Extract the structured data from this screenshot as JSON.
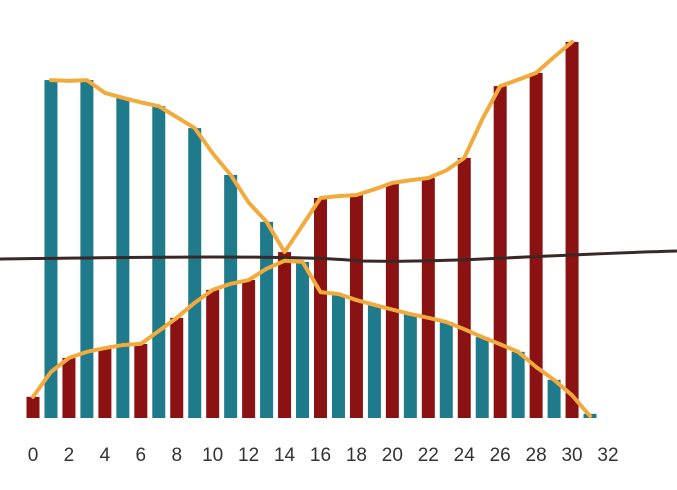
{
  "chart_data": {
    "type": "bar",
    "xlim": [
      0,
      32
    ],
    "xticks": [
      0,
      2,
      4,
      6,
      8,
      10,
      12,
      14,
      16,
      18,
      20,
      22,
      24,
      26,
      28,
      30,
      32
    ],
    "ylim": [
      0,
      100
    ],
    "series": [
      {
        "type": "bar",
        "color": "#8b1212",
        "x": [
          0,
          2,
          4,
          6,
          8,
          10,
          12,
          14,
          16,
          18,
          20,
          22,
          24,
          26,
          28,
          30
        ],
        "values": [
          5.6,
          15.9,
          18.5,
          19.6,
          26.5,
          33.9,
          36.5,
          43.9,
          58.2,
          59.0,
          62.2,
          63.5,
          68.8,
          87.8,
          91.3,
          99.5
        ]
      },
      {
        "type": "bar",
        "color": "#1f7a8c",
        "x": [
          1,
          3,
          5,
          7,
          9,
          11,
          13,
          15,
          17,
          19,
          21,
          23,
          25,
          27,
          29,
          31
        ],
        "values": [
          89.4,
          89.4,
          84.7,
          82.5,
          76.7,
          64.3,
          51.9,
          41.3,
          32.8,
          29.9,
          27.5,
          25.4,
          21.4,
          17.5,
          10.1,
          1.1
        ]
      },
      {
        "type": "line",
        "color": "#f2aa3c",
        "x": [
          1,
          2,
          3,
          4,
          5,
          6,
          7,
          8,
          9,
          10,
          11,
          12,
          13,
          14,
          15,
          16,
          17,
          18,
          19,
          20,
          21,
          22,
          23,
          24,
          25,
          26,
          27,
          28,
          29,
          30
        ],
        "values": [
          89.4,
          89.2,
          89.4,
          86,
          84.7,
          83.5,
          82.5,
          79.6,
          76.7,
          70,
          64.3,
          57,
          51.9,
          43.9,
          51,
          58.2,
          58.7,
          59,
          60.5,
          62.2,
          62.9,
          63.5,
          65.5,
          68.8,
          79,
          87.8,
          89.5,
          91.3,
          95.5,
          99.5
        ]
      },
      {
        "type": "line",
        "color": "#f2aa3c",
        "x": [
          0,
          1,
          2,
          3,
          4,
          5,
          6,
          7,
          8,
          9,
          10,
          11,
          12,
          13,
          14,
          15,
          16,
          17,
          18,
          19,
          20,
          21,
          22,
          23,
          24,
          25,
          26,
          27,
          28,
          29,
          30,
          31
        ],
        "values": [
          5.6,
          12.2,
          15.9,
          17.5,
          18.5,
          19.3,
          19.6,
          23,
          26.5,
          30.5,
          33.9,
          35.5,
          36.5,
          39.5,
          41.6,
          41.3,
          33.3,
          32.8,
          31.2,
          29.9,
          28.7,
          27.5,
          26.5,
          25.4,
          23.5,
          21.4,
          19.5,
          17.5,
          13.5,
          10.1,
          6,
          0.5
        ]
      }
    ]
  }
}
